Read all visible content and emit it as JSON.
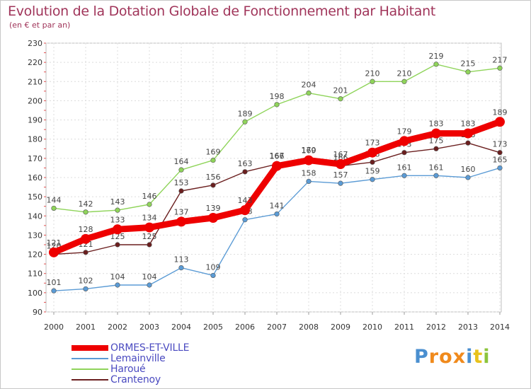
{
  "chart_data": {
    "type": "line",
    "title": "Evolution de la Dotation Globale de Fonctionnement par Habitant",
    "subtitle": "(en € et par an)",
    "x": [
      "2000",
      "2001",
      "2002",
      "2003",
      "2004",
      "2005",
      "2006",
      "2007",
      "2008",
      "2009",
      "2010",
      "2011",
      "2012",
      "2013",
      "2014"
    ],
    "ylim": [
      90,
      230
    ],
    "yticks": [
      90,
      100,
      110,
      120,
      130,
      140,
      150,
      160,
      170,
      180,
      190,
      200,
      210,
      220,
      230
    ],
    "grid": true,
    "legend_position": "bottom-left",
    "series": [
      {
        "name": "Lemainville",
        "color": "#5b9bd5",
        "values": [
          101,
          102,
          104,
          104,
          113,
          109,
          138,
          141,
          158,
          157,
          159,
          161,
          161,
          160,
          165
        ]
      },
      {
        "name": "Haroué",
        "color": "#8fd45a",
        "values": [
          144,
          142,
          143,
          146,
          164,
          169,
          189,
          198,
          204,
          201,
          210,
          210,
          219,
          215,
          217
        ]
      },
      {
        "name": "Crantenoy",
        "color": "#6b1f1f",
        "values": [
          120,
          121,
          125,
          125,
          153,
          156,
          163,
          167,
          170,
          166,
          168,
          173,
          175,
          178,
          173
        ]
      },
      {
        "name": "ORMES-ET-VILLE",
        "color": "#ee0000",
        "values": [
          121,
          128,
          133,
          134,
          137,
          139,
          143,
          166,
          169,
          167,
          173,
          179,
          183,
          183,
          189
        ]
      }
    ],
    "legend": [
      "ORMES-ET-VILLE",
      "Lemainville",
      "Haroué",
      "Crantenoy"
    ]
  },
  "logo": {
    "letters": [
      "P",
      "r",
      "o",
      "x",
      "i",
      "t",
      "i"
    ],
    "colors": [
      "#4a8fd0",
      "#f08a1c",
      "#f08a1c",
      "#f08a1c",
      "#4a8fd0",
      "#e8c21c",
      "#8cc43c"
    ]
  }
}
